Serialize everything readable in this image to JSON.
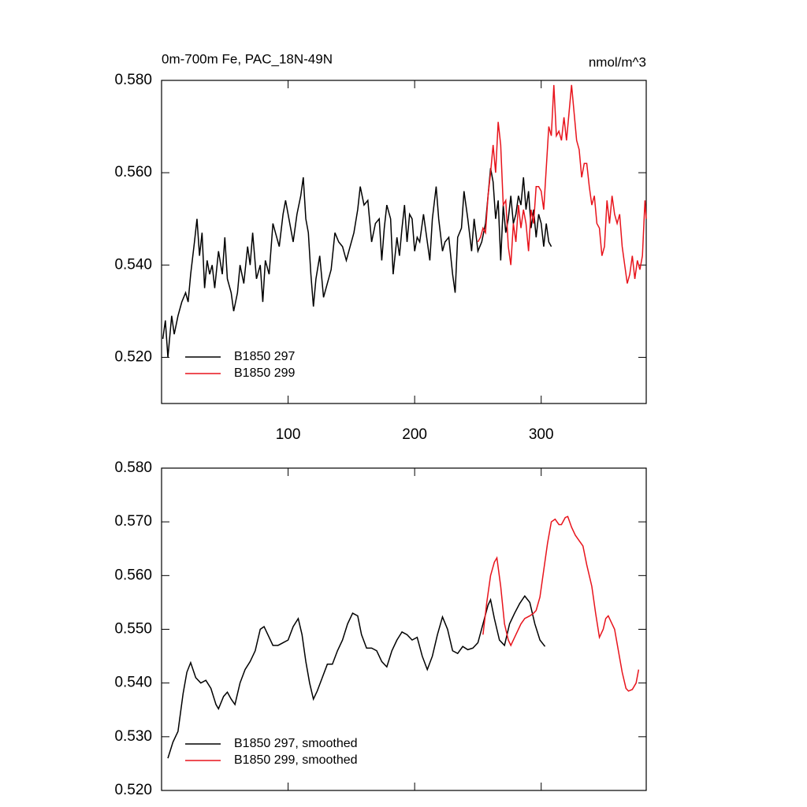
{
  "chart_data": [
    {
      "type": "line",
      "title": "0m-700m Fe, PAC_18N-49N",
      "units": "nmol/m^3",
      "xlim": [
        0,
        383
      ],
      "xticks": [
        100,
        200,
        300
      ],
      "xtick_labels": true,
      "ylim": [
        0.51,
        0.58
      ],
      "yticks": [
        {
          "value": 0.52,
          "label": "0.520"
        },
        {
          "value": 0.54,
          "label": "0.540"
        },
        {
          "value": 0.56,
          "label": "0.560"
        },
        {
          "value": 0.58,
          "label": "0.580"
        }
      ],
      "legend": "lower left",
      "series": [
        {
          "name": "B1850 297",
          "color": "#000000",
          "x": [
            1,
            3,
            5,
            8,
            10,
            13,
            16,
            19,
            21,
            23,
            26,
            28,
            30,
            32,
            34,
            36,
            38,
            40,
            42,
            45,
            48,
            50,
            52,
            55,
            57,
            60,
            62,
            65,
            68,
            70,
            72,
            75,
            78,
            80,
            82,
            85,
            88,
            90,
            93,
            96,
            98,
            100,
            102,
            104,
            107,
            110,
            112,
            114,
            116,
            118,
            120,
            122,
            125,
            128,
            131,
            134,
            137,
            140,
            143,
            146,
            149,
            152,
            155,
            157,
            160,
            163,
            166,
            169,
            172,
            174,
            176,
            178,
            181,
            183,
            186,
            188,
            190,
            192,
            194,
            196,
            198,
            200,
            202,
            204,
            207,
            210,
            212,
            214,
            217,
            219,
            222,
            224,
            227,
            230,
            232,
            234,
            237,
            239,
            242,
            245,
            247,
            250,
            253,
            256,
            258,
            260,
            262,
            264,
            266,
            268,
            270,
            272,
            274,
            276,
            278,
            280,
            282,
            284,
            286,
            288,
            290,
            292,
            294,
            296,
            298,
            300,
            302,
            304,
            306,
            308
          ],
          "values": [
            0.524,
            0.528,
            0.52,
            0.529,
            0.525,
            0.529,
            0.532,
            0.534,
            0.532,
            0.538,
            0.545,
            0.55,
            0.542,
            0.547,
            0.535,
            0.541,
            0.538,
            0.54,
            0.535,
            0.543,
            0.538,
            0.546,
            0.537,
            0.534,
            0.53,
            0.534,
            0.54,
            0.536,
            0.544,
            0.54,
            0.547,
            0.537,
            0.54,
            0.532,
            0.541,
            0.538,
            0.549,
            0.547,
            0.544,
            0.551,
            0.554,
            0.551,
            0.548,
            0.545,
            0.551,
            0.555,
            0.559,
            0.55,
            0.547,
            0.538,
            0.531,
            0.537,
            0.542,
            0.533,
            0.536,
            0.539,
            0.547,
            0.545,
            0.544,
            0.541,
            0.544,
            0.547,
            0.552,
            0.557,
            0.553,
            0.554,
            0.545,
            0.549,
            0.55,
            0.541,
            0.548,
            0.553,
            0.55,
            0.538,
            0.546,
            0.542,
            0.548,
            0.553,
            0.545,
            0.551,
            0.55,
            0.543,
            0.546,
            0.545,
            0.551,
            0.545,
            0.541,
            0.55,
            0.557,
            0.55,
            0.543,
            0.545,
            0.546,
            0.538,
            0.534,
            0.546,
            0.548,
            0.556,
            0.55,
            0.543,
            0.55,
            0.543,
            0.545,
            0.549,
            0.555,
            0.561,
            0.558,
            0.55,
            0.554,
            0.541,
            0.553,
            0.547,
            0.55,
            0.555,
            0.549,
            0.551,
            0.555,
            0.553,
            0.559,
            0.552,
            0.556,
            0.548,
            0.552,
            0.546,
            0.551,
            0.549,
            0.544,
            0.549,
            0.545,
            0.544
          ]
        },
        {
          "name": "B1850 299",
          "color": "#e8141c",
          "x": [
            250,
            252,
            254,
            256,
            258,
            260,
            262,
            264,
            266,
            268,
            270,
            272,
            274,
            276,
            278,
            280,
            282,
            284,
            286,
            288,
            290,
            292,
            294,
            296,
            298,
            300,
            302,
            304,
            306,
            308,
            310,
            312,
            314,
            316,
            318,
            320,
            322,
            324,
            326,
            328,
            330,
            332,
            334,
            336,
            338,
            340,
            342,
            344,
            346,
            348,
            350,
            352,
            354,
            356,
            358,
            360,
            362,
            364,
            366,
            368,
            370,
            372,
            374,
            376,
            378,
            380,
            382,
            383
          ],
          "values": [
            0.545,
            0.546,
            0.548,
            0.547,
            0.555,
            0.56,
            0.566,
            0.56,
            0.571,
            0.566,
            0.553,
            0.554,
            0.544,
            0.54,
            0.549,
            0.545,
            0.553,
            0.548,
            0.552,
            0.549,
            0.543,
            0.552,
            0.549,
            0.557,
            0.557,
            0.556,
            0.552,
            0.561,
            0.57,
            0.568,
            0.579,
            0.568,
            0.569,
            0.567,
            0.572,
            0.567,
            0.573,
            0.579,
            0.573,
            0.567,
            0.565,
            0.559,
            0.562,
            0.562,
            0.557,
            0.553,
            0.555,
            0.549,
            0.548,
            0.542,
            0.544,
            0.554,
            0.549,
            0.555,
            0.551,
            0.549,
            0.551,
            0.544,
            0.54,
            0.536,
            0.538,
            0.542,
            0.537,
            0.541,
            0.539,
            0.542,
            0.554,
            0.55
          ]
        }
      ]
    },
    {
      "type": "line",
      "xlim": [
        0,
        383
      ],
      "xticks": [
        100,
        200,
        300
      ],
      "xtick_labels": false,
      "ylim": [
        0.52,
        0.58
      ],
      "yticks": [
        {
          "value": 0.52,
          "label": "0.520"
        },
        {
          "value": 0.53,
          "label": "0.530"
        },
        {
          "value": 0.54,
          "label": "0.540"
        },
        {
          "value": 0.55,
          "label": "0.550"
        },
        {
          "value": 0.56,
          "label": "0.560"
        },
        {
          "value": 0.57,
          "label": "0.570"
        },
        {
          "value": 0.58,
          "label": "0.580"
        }
      ],
      "legend": "lower left",
      "series": [
        {
          "name": "B1850 297, smoothed",
          "color": "#000000",
          "x": [
            5,
            9,
            13,
            17,
            20,
            23,
            27,
            31,
            35,
            39,
            43,
            45,
            49,
            52,
            55,
            58,
            62,
            66,
            70,
            74,
            78,
            81,
            85,
            88,
            92,
            96,
            100,
            104,
            108,
            111,
            114,
            117,
            120,
            123,
            127,
            131,
            135,
            139,
            143,
            147,
            151,
            155,
            158,
            162,
            166,
            170,
            174,
            178,
            182,
            186,
            190,
            194,
            198,
            202,
            206,
            210,
            214,
            218,
            222,
            226,
            230,
            234,
            238,
            242,
            246,
            250,
            254,
            258,
            260,
            263,
            267,
            271,
            275,
            279,
            283,
            287,
            291,
            295,
            299,
            303
          ],
          "values": [
            0.526,
            0.529,
            0.531,
            0.538,
            0.542,
            0.5438,
            0.541,
            0.54,
            0.5405,
            0.539,
            0.536,
            0.5352,
            0.5375,
            0.5383,
            0.537,
            0.536,
            0.54,
            0.5425,
            0.544,
            0.546,
            0.55,
            0.5505,
            0.5485,
            0.547,
            0.547,
            0.5475,
            0.548,
            0.5505,
            0.552,
            0.549,
            0.544,
            0.54,
            0.537,
            0.5385,
            0.541,
            0.5435,
            0.5435,
            0.546,
            0.548,
            0.551,
            0.553,
            0.5525,
            0.549,
            0.5465,
            0.5465,
            0.546,
            0.544,
            0.543,
            0.546,
            0.548,
            0.5495,
            0.549,
            0.548,
            0.5485,
            0.545,
            0.5425,
            0.545,
            0.549,
            0.5523,
            0.55,
            0.546,
            0.5455,
            0.5468,
            0.5462,
            0.5465,
            0.5475,
            0.551,
            0.5545,
            0.5555,
            0.552,
            0.548,
            0.547,
            0.551,
            0.553,
            0.5548,
            0.5562,
            0.555,
            0.551,
            0.548,
            0.5468
          ]
        },
        {
          "name": "B1850 299, smoothed",
          "color": "#e8141c",
          "x": [
            254,
            257,
            260,
            263,
            265,
            268,
            271,
            274,
            276,
            280,
            284,
            287,
            291,
            294,
            296,
            299,
            302,
            305,
            308,
            311,
            314,
            316,
            319,
            321,
            324,
            327,
            330,
            333,
            336,
            340,
            343,
            346,
            349,
            351,
            353,
            356,
            358,
            361,
            364,
            367,
            369,
            372,
            375,
            377
          ],
          "values": [
            0.549,
            0.555,
            0.56,
            0.5625,
            0.5633,
            0.558,
            0.551,
            0.548,
            0.547,
            0.549,
            0.551,
            0.552,
            0.5525,
            0.553,
            0.5535,
            0.556,
            0.561,
            0.566,
            0.57,
            0.5705,
            0.5695,
            0.5695,
            0.5708,
            0.571,
            0.569,
            0.5675,
            0.5665,
            0.5655,
            0.562,
            0.558,
            0.553,
            0.5485,
            0.55,
            0.552,
            0.5525,
            0.551,
            0.55,
            0.546,
            0.542,
            0.539,
            0.5385,
            0.5388,
            0.54,
            0.5425
          ]
        }
      ]
    }
  ]
}
